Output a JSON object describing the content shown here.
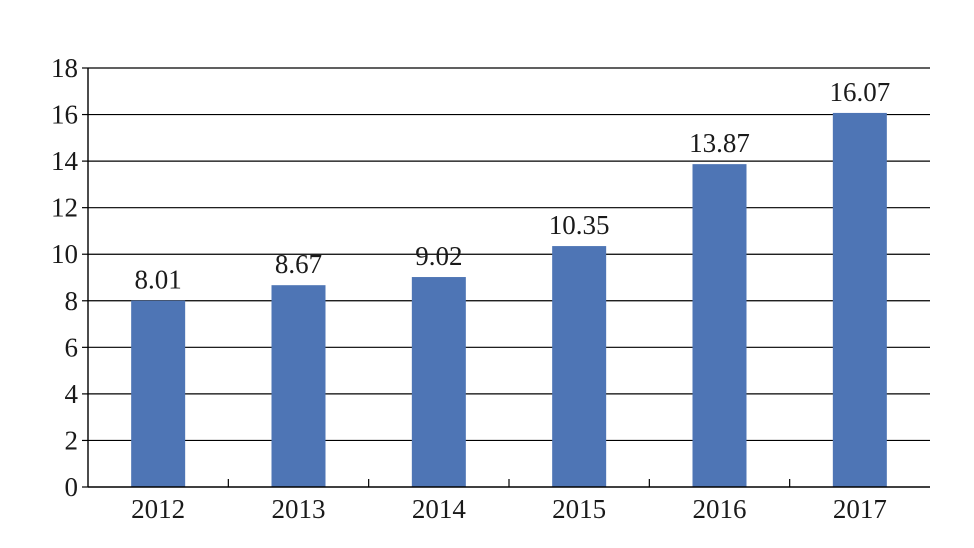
{
  "chart_data": {
    "type": "bar",
    "categories": [
      "2012",
      "2013",
      "2014",
      "2015",
      "2016",
      "2017"
    ],
    "values": [
      8.01,
      8.67,
      9.02,
      10.35,
      13.87,
      16.07
    ],
    "data_labels": [
      "8.01",
      "8.67",
      "9.02",
      "10.35",
      "13.87",
      "16.07"
    ],
    "title": "",
    "xlabel": "",
    "ylabel": "",
    "ylim": [
      0,
      18
    ],
    "yticks": [
      0,
      2,
      4,
      6,
      8,
      10,
      12,
      14,
      16,
      18
    ],
    "ytick_labels": [
      "0",
      "2",
      "4",
      "6",
      "8",
      "10",
      "12",
      "14",
      "16",
      "18"
    ],
    "grid": "horizontal",
    "legend": "none",
    "bar_color": "#4e75b5",
    "grid_color": "#000000"
  }
}
